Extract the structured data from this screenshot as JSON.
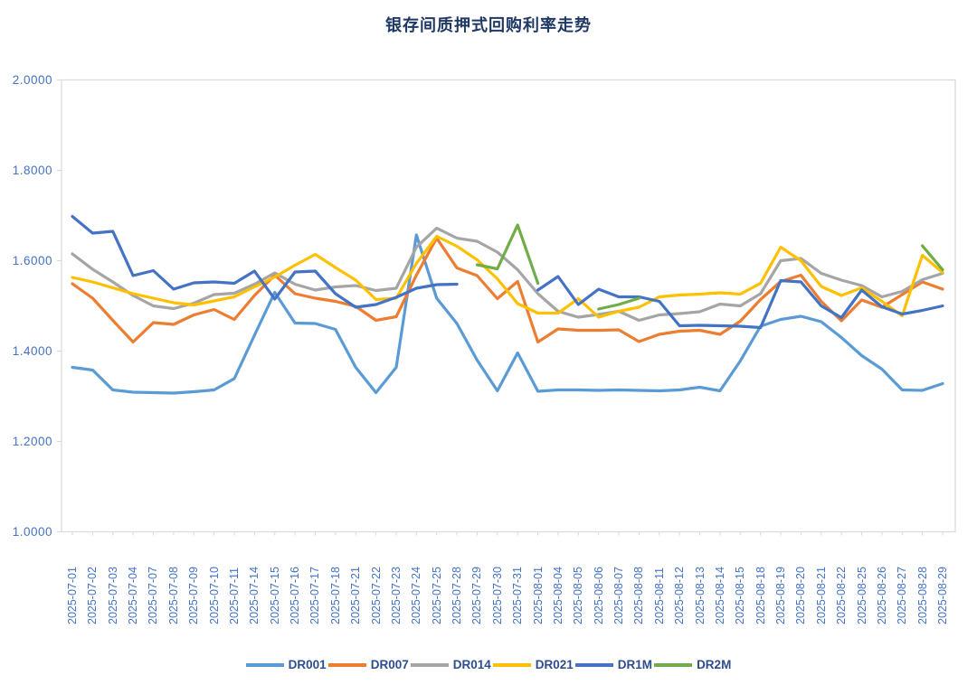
{
  "chart_data": {
    "type": "line",
    "title": "银存间质押式回购利率走势",
    "xlabel": "",
    "ylabel": "",
    "ylim": [
      1.0,
      2.0
    ],
    "ytick_values": [
      2.0,
      1.8,
      1.6,
      1.4,
      1.2,
      1.0
    ],
    "ytick_labels": [
      "2.0000",
      "1.8000",
      "1.6000",
      "1.4000",
      "1.2000",
      "1.0000"
    ],
    "grid": false,
    "legend_position": "bottom",
    "x": [
      "2025-07-01",
      "2025-07-02",
      "2025-07-03",
      "2025-07-04",
      "2025-07-07",
      "2025-07-08",
      "2025-07-09",
      "2025-07-10",
      "2025-07-11",
      "2025-07-14",
      "2025-07-15",
      "2025-07-16",
      "2025-07-17",
      "2025-07-18",
      "2025-07-21",
      "2025-07-22",
      "2025-07-23",
      "2025-07-24",
      "2025-07-25",
      "2025-07-28",
      "2025-07-29",
      "2025-07-30",
      "2025-07-31",
      "2025-08-01",
      "2025-08-04",
      "2025-08-05",
      "2025-08-06",
      "2025-08-07",
      "2025-08-08",
      "2025-08-11",
      "2025-08-12",
      "2025-08-13",
      "2025-08-14",
      "2025-08-15",
      "2025-08-18",
      "2025-08-19",
      "2025-08-20",
      "2025-08-21",
      "2025-08-22",
      "2025-08-25",
      "2025-08-26",
      "2025-08-27",
      "2025-08-28",
      "2025-08-29"
    ],
    "series": [
      {
        "name": "DR001",
        "color": "#5B9BD5",
        "values": [
          1.364,
          1.358,
          1.314,
          1.309,
          1.308,
          1.307,
          1.31,
          1.314,
          1.339,
          1.435,
          1.53,
          1.462,
          1.461,
          1.448,
          1.364,
          1.308,
          1.364,
          1.657,
          1.517,
          1.461,
          1.38,
          1.312,
          1.396,
          1.311,
          1.314,
          1.314,
          1.313,
          1.314,
          1.313,
          1.312,
          1.314,
          1.32,
          1.312,
          1.378,
          1.455,
          1.47,
          1.477,
          1.465,
          1.43,
          1.39,
          1.36,
          1.314,
          1.313,
          1.328
        ]
      },
      {
        "name": "DR007",
        "color": "#ED7D31",
        "values": [
          1.549,
          1.517,
          1.468,
          1.42,
          1.463,
          1.459,
          1.48,
          1.492,
          1.47,
          1.523,
          1.568,
          1.527,
          1.517,
          1.51,
          1.499,
          1.468,
          1.476,
          1.568,
          1.65,
          1.584,
          1.567,
          1.516,
          1.554,
          1.42,
          1.449,
          1.446,
          1.446,
          1.447,
          1.421,
          1.437,
          1.444,
          1.446,
          1.437,
          1.466,
          1.514,
          1.554,
          1.568,
          1.51,
          1.467,
          1.513,
          1.497,
          1.525,
          1.553,
          1.537
        ]
      },
      {
        "name": "DR014",
        "color": "#A5A5A5",
        "values": [
          1.615,
          1.581,
          1.553,
          1.523,
          1.5,
          1.494,
          1.506,
          1.525,
          1.528,
          1.548,
          1.573,
          1.548,
          1.535,
          1.542,
          1.545,
          1.534,
          1.539,
          1.63,
          1.672,
          1.65,
          1.643,
          1.619,
          1.58,
          1.527,
          1.488,
          1.475,
          1.481,
          1.488,
          1.468,
          1.48,
          1.483,
          1.487,
          1.504,
          1.5,
          1.527,
          1.6,
          1.605,
          1.572,
          1.557,
          1.545,
          1.52,
          1.532,
          1.558,
          1.572
        ]
      },
      {
        "name": "DR021",
        "color": "#FFC000",
        "values": [
          1.563,
          1.553,
          1.54,
          1.527,
          1.517,
          1.507,
          1.502,
          1.511,
          1.52,
          1.542,
          1.564,
          1.59,
          1.614,
          1.585,
          1.557,
          1.514,
          1.517,
          1.594,
          1.654,
          1.632,
          1.602,
          1.56,
          1.505,
          1.484,
          1.484,
          1.516,
          1.475,
          1.488,
          1.497,
          1.52,
          1.524,
          1.526,
          1.529,
          1.526,
          1.55,
          1.63,
          1.6,
          1.543,
          1.523,
          1.54,
          1.51,
          1.478,
          1.612,
          1.574
        ]
      },
      {
        "name": "DR1M",
        "color": "#4472C4",
        "values": [
          1.698,
          1.661,
          1.665,
          1.567,
          1.578,
          1.537,
          1.551,
          1.553,
          1.55,
          1.577,
          1.515,
          1.575,
          1.577,
          1.527,
          1.497,
          1.503,
          1.519,
          1.539,
          1.547,
          1.548,
          null,
          null,
          null,
          1.535,
          1.565,
          1.503,
          1.537,
          1.52,
          1.52,
          1.51,
          1.456,
          1.457,
          1.456,
          1.455,
          1.452,
          1.556,
          1.553,
          1.5,
          1.474,
          1.535,
          1.498,
          1.482,
          1.49,
          1.5
        ]
      },
      {
        "name": "DR2M",
        "color": "#70AD47",
        "values": [
          null,
          null,
          null,
          null,
          null,
          null,
          null,
          null,
          null,
          null,
          null,
          null,
          null,
          null,
          null,
          null,
          null,
          null,
          null,
          null,
          1.591,
          1.582,
          1.679,
          1.55,
          null,
          null,
          1.493,
          1.503,
          1.517,
          null,
          null,
          null,
          null,
          null,
          null,
          null,
          null,
          null,
          null,
          null,
          null,
          null,
          1.633,
          1.58
        ]
      }
    ],
    "axis_color": "#D9D9D9",
    "tick_label_color": "#4472C4",
    "title_color": "#1F3864"
  }
}
